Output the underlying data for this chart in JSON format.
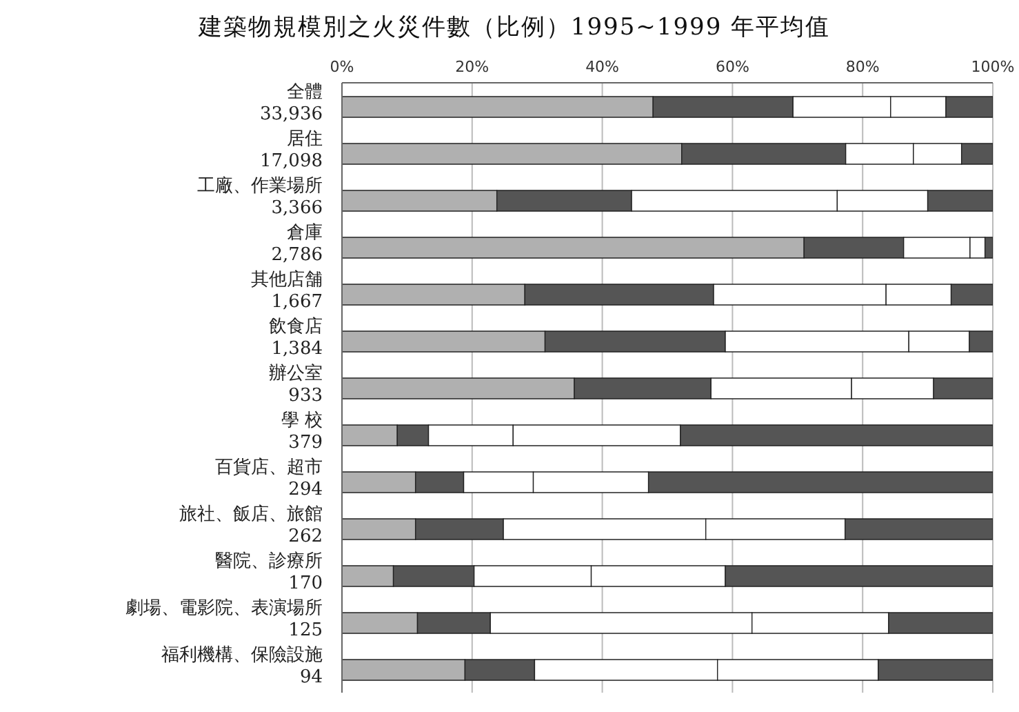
{
  "chart_data": {
    "type": "bar",
    "orientation": "horizontal",
    "stacked": true,
    "title": "建築物規模別之火災件數（比例）1995~1999 年平均值",
    "categories": [
      "全體\n33,936",
      "居住\n17,098",
      "工廠、作業場所\n3,366",
      "倉庫\n2,786",
      "其他店舗\n1,667",
      "飲食店\n1,384",
      "辦公室\n933",
      "學 校\n379",
      "百貨店、超市\n294",
      "旅社、飯店、旅館\n262",
      "醫院、診療所\n170",
      "劇場、電影院、表演場所\n125",
      "福利機構、保險設施\n94"
    ],
    "series": [
      {
        "color": "#b0b0b0",
        "values": [
          47.8,
          52.2,
          23.8,
          71.0,
          28.1,
          31.2,
          35.7,
          8.5,
          11.3,
          11.3,
          7.9,
          11.6,
          18.9
        ]
      },
      {
        "color": "#555555",
        "values": [
          21.5,
          25.2,
          20.7,
          15.3,
          29.0,
          27.7,
          21.0,
          4.8,
          7.4,
          13.5,
          12.4,
          11.2,
          10.7
        ]
      },
      {
        "color": "#ffffff",
        "values": [
          15.0,
          10.4,
          31.6,
          10.2,
          26.5,
          28.2,
          21.6,
          13.0,
          10.7,
          31.1,
          18.0,
          40.2,
          28.1
        ]
      },
      {
        "color": "#ffffff",
        "values": [
          8.5,
          7.4,
          13.9,
          2.3,
          10.0,
          9.3,
          12.6,
          25.7,
          17.7,
          21.4,
          20.6,
          21.0,
          24.7
        ]
      },
      {
        "color": "#555555",
        "values": [
          7.2,
          4.8,
          10.0,
          1.2,
          6.4,
          3.6,
          9.1,
          48.0,
          52.9,
          22.7,
          41.1,
          16.0,
          17.6
        ]
      }
    ],
    "xlim": [
      0,
      100
    ],
    "xticks": [
      {
        "value": 0,
        "label": "0%"
      },
      {
        "value": 20,
        "label": "20%"
      },
      {
        "value": 40,
        "label": "40%"
      },
      {
        "value": 60,
        "label": "60%"
      },
      {
        "value": 80,
        "label": "80%"
      },
      {
        "value": 100,
        "label": "100%"
      }
    ],
    "grid": "x"
  }
}
